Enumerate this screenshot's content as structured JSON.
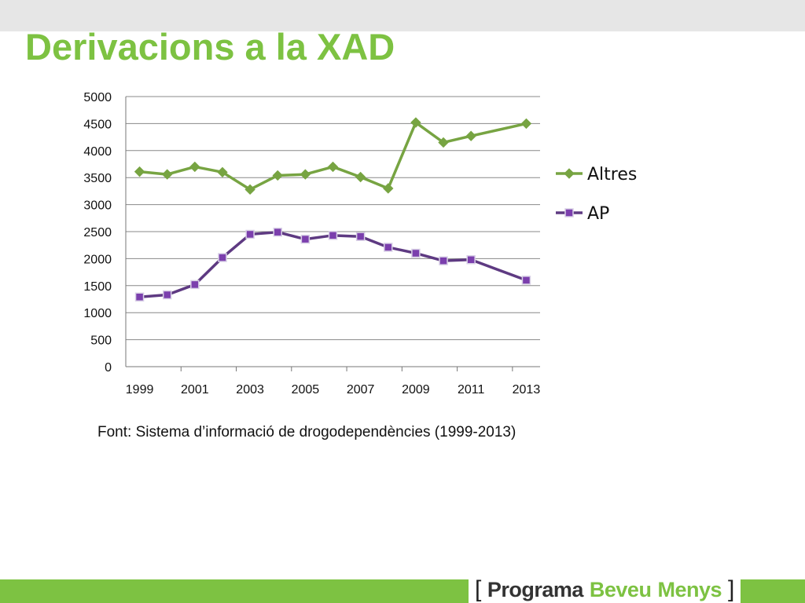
{
  "title": "Derivacions a la XAD",
  "source": "Font: Sistema d’informació de drogodependències (1999-2013)",
  "footer_logo": {
    "open_bracket": "[",
    "word1": "Programa",
    "word2": "Beveu",
    "word3": "Menys",
    "close_bracket": "]"
  },
  "colors": {
    "accent": "#7dc242",
    "altres_line": "#77a442",
    "ap_line": "#5e3a82",
    "ap_marker": "#7b3fad",
    "grid": "#888888",
    "top_band": "#e6e6e6"
  },
  "chart_data": {
    "type": "line",
    "x": [
      1999,
      2000,
      2001,
      2002,
      2003,
      2004,
      2005,
      2006,
      2007,
      2008,
      2009,
      2010,
      2011,
      2013
    ],
    "x_tick_labels": [
      "1999",
      "2001",
      "2003",
      "2005",
      "2007",
      "2009",
      "2011",
      "2013"
    ],
    "y_ticks": [
      "0",
      "500",
      "1000",
      "1500",
      "2000",
      "2500",
      "3000",
      "3500",
      "4000",
      "4500",
      "5000"
    ],
    "ylim": [
      0,
      5000
    ],
    "grid": true,
    "legend_position": "right",
    "series": [
      {
        "name": "Altres",
        "marker": "diamond",
        "values": [
          3610,
          3560,
          3700,
          3600,
          3280,
          3540,
          3560,
          3700,
          3510,
          3300,
          4520,
          4150,
          4270,
          4500
        ]
      },
      {
        "name": "AP",
        "marker": "square",
        "values": [
          1290,
          1330,
          1520,
          2020,
          2450,
          2490,
          2360,
          2430,
          2410,
          2210,
          2100,
          1960,
          1980,
          1600
        ]
      }
    ]
  }
}
